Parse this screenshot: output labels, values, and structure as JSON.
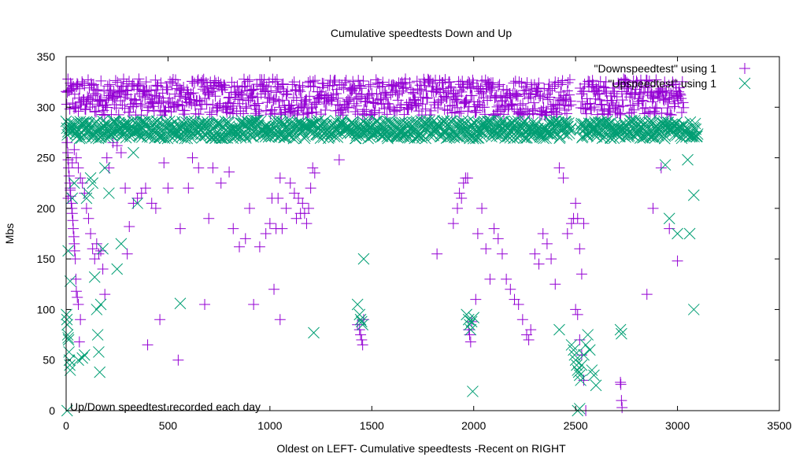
{
  "chart_data": {
    "type": "scatter",
    "title": "Cumulative speedtests Down and Up",
    "xlabel": "Oldest on LEFT- Cumulative speedtests -Recent on RIGHT",
    "ylabel": "Mbs",
    "xlim": [
      0,
      3500
    ],
    "ylim": [
      0,
      350
    ],
    "xticks": [
      0,
      500,
      1000,
      1500,
      2000,
      2500,
      3000,
      3500
    ],
    "yticks": [
      0,
      50,
      100,
      150,
      200,
      250,
      300,
      350
    ],
    "grid": false,
    "legend_position": "top-right",
    "annotation": "Up/Down speedtest recorded each day",
    "series": [
      {
        "name": "\"Downspeedtest\" using 1",
        "marker": "plus",
        "color": "#9400d3",
        "band": {
          "x_range": [
            0,
            3030
          ],
          "y_center": 310,
          "y_spread": 18,
          "count": 3030,
          "gaps": [
            [
              2480,
              2520
            ]
          ]
        },
        "points": [
          [
            5,
            265
          ],
          [
            8,
            255
          ],
          [
            10,
            248
          ],
          [
            12,
            240
          ],
          [
            15,
            232
          ],
          [
            18,
            225
          ],
          [
            20,
            218
          ],
          [
            22,
            212
          ],
          [
            25,
            205
          ],
          [
            28,
            200
          ],
          [
            30,
            195
          ],
          [
            33,
            188
          ],
          [
            35,
            180
          ],
          [
            38,
            172
          ],
          [
            40,
            165
          ],
          [
            42,
            158
          ],
          [
            45,
            150
          ],
          [
            48,
            130
          ],
          [
            50,
            118
          ],
          [
            55,
            112
          ],
          [
            60,
            105
          ],
          [
            65,
            68
          ],
          [
            70,
            90
          ],
          [
            10,
            210
          ],
          [
            20,
            220
          ],
          [
            30,
            245
          ],
          [
            40,
            258
          ],
          [
            50,
            250
          ],
          [
            60,
            240
          ],
          [
            70,
            230
          ],
          [
            80,
            225
          ],
          [
            90,
            215
          ],
          [
            100,
            200
          ],
          [
            110,
            190
          ],
          [
            120,
            175
          ],
          [
            130,
            160
          ],
          [
            140,
            150
          ],
          [
            150,
            165
          ],
          [
            160,
            155
          ],
          [
            170,
            158
          ],
          [
            180,
            140
          ],
          [
            190,
            115
          ],
          [
            200,
            250
          ],
          [
            210,
            240
          ],
          [
            230,
            265
          ],
          [
            250,
            262
          ],
          [
            270,
            255
          ],
          [
            290,
            220
          ],
          [
            300,
            155
          ],
          [
            310,
            182
          ],
          [
            330,
            205
          ],
          [
            350,
            210
          ],
          [
            370,
            215
          ],
          [
            390,
            220
          ],
          [
            400,
            65
          ],
          [
            420,
            205
          ],
          [
            440,
            200
          ],
          [
            460,
            90
          ],
          [
            480,
            245
          ],
          [
            500,
            220
          ],
          [
            550,
            50
          ],
          [
            560,
            180
          ],
          [
            600,
            220
          ],
          [
            620,
            250
          ],
          [
            650,
            240
          ],
          [
            680,
            105
          ],
          [
            700,
            190
          ],
          [
            720,
            240
          ],
          [
            760,
            225
          ],
          [
            800,
            236
          ],
          [
            820,
            180
          ],
          [
            850,
            162
          ],
          [
            880,
            170
          ],
          [
            900,
            200
          ],
          [
            920,
            105
          ],
          [
            950,
            162
          ],
          [
            980,
            175
          ],
          [
            1000,
            185
          ],
          [
            1010,
            210
          ],
          [
            1020,
            120
          ],
          [
            1030,
            180
          ],
          [
            1040,
            210
          ],
          [
            1050,
            230
          ],
          [
            1060,
            180
          ],
          [
            1080,
            200
          ],
          [
            1100,
            225
          ],
          [
            1120,
            215
          ],
          [
            1130,
            190
          ],
          [
            1140,
            210
          ],
          [
            1160,
            205
          ],
          [
            1170,
            195
          ],
          [
            1180,
            185
          ],
          [
            1190,
            200
          ],
          [
            1200,
            220
          ],
          [
            1210,
            240
          ],
          [
            1220,
            235
          ],
          [
            1050,
            90
          ],
          [
            1150,
            195
          ],
          [
            1340,
            248
          ],
          [
            1430,
            85
          ],
          [
            1440,
            80
          ],
          [
            1445,
            75
          ],
          [
            1450,
            70
          ],
          [
            1455,
            65
          ],
          [
            1460,
            90
          ],
          [
            1820,
            155
          ],
          [
            1900,
            185
          ],
          [
            1920,
            200
          ],
          [
            1930,
            215
          ],
          [
            1940,
            210
          ],
          [
            1950,
            225
          ],
          [
            1960,
            230
          ],
          [
            1970,
            230
          ],
          [
            1975,
            80
          ],
          [
            1980,
            75
          ],
          [
            1985,
            68
          ],
          [
            1990,
            88
          ],
          [
            2010,
            110
          ],
          [
            2020,
            175
          ],
          [
            2040,
            200
          ],
          [
            2060,
            160
          ],
          [
            2080,
            130
          ],
          [
            2100,
            180
          ],
          [
            2120,
            170
          ],
          [
            2140,
            155
          ],
          [
            2160,
            130
          ],
          [
            2180,
            120
          ],
          [
            2200,
            110
          ],
          [
            2220,
            105
          ],
          [
            2240,
            90
          ],
          [
            2260,
            75
          ],
          [
            2270,
            70
          ],
          [
            2280,
            80
          ],
          [
            2300,
            155
          ],
          [
            2320,
            145
          ],
          [
            2340,
            175
          ],
          [
            2360,
            165
          ],
          [
            2380,
            150
          ],
          [
            2400,
            125
          ],
          [
            2420,
            240
          ],
          [
            2440,
            230
          ],
          [
            2460,
            175
          ],
          [
            2480,
            185
          ],
          [
            2490,
            190
          ],
          [
            2500,
            205
          ],
          [
            2510,
            190
          ],
          [
            2520,
            160
          ],
          [
            2530,
            135
          ],
          [
            2540,
            185
          ],
          [
            2500,
            100
          ],
          [
            2510,
            95
          ],
          [
            2520,
            70
          ],
          [
            2530,
            55
          ],
          [
            2540,
            30
          ],
          [
            2550,
            0
          ],
          [
            2720,
            28
          ],
          [
            2722,
            26
          ],
          [
            2725,
            10
          ],
          [
            2728,
            3
          ],
          [
            2850,
            115
          ],
          [
            2880,
            200
          ],
          [
            2920,
            240
          ],
          [
            2960,
            180
          ],
          [
            3000,
            148
          ]
        ]
      },
      {
        "name": "\"Upspeedtest\" using 1",
        "marker": "cross",
        "color": "#009e73",
        "band": {
          "x_range": [
            0,
            3100
          ],
          "y_center": 278,
          "y_spread": 9,
          "count": 3100,
          "gaps": [
            [
              2480,
              2520
            ]
          ]
        },
        "points": [
          [
            2,
            95
          ],
          [
            4,
            90
          ],
          [
            6,
            85
          ],
          [
            8,
            75
          ],
          [
            10,
            72
          ],
          [
            12,
            70
          ],
          [
            14,
            58
          ],
          [
            16,
            50
          ],
          [
            18,
            45
          ],
          [
            20,
            40
          ],
          [
            5,
            0
          ],
          [
            10,
            158
          ],
          [
            20,
            128
          ],
          [
            30,
            210
          ],
          [
            40,
            225
          ],
          [
            60,
            50
          ],
          [
            80,
            52
          ],
          [
            90,
            55
          ],
          [
            100,
            210
          ],
          [
            110,
            215
          ],
          [
            120,
            230
          ],
          [
            130,
            225
          ],
          [
            140,
            132
          ],
          [
            150,
            100
          ],
          [
            155,
            75
          ],
          [
            160,
            58
          ],
          [
            165,
            38
          ],
          [
            170,
            105
          ],
          [
            180,
            160
          ],
          [
            190,
            240
          ],
          [
            210,
            215
          ],
          [
            250,
            140
          ],
          [
            270,
            165
          ],
          [
            330,
            255
          ],
          [
            350,
            205
          ],
          [
            560,
            106
          ],
          [
            1215,
            77
          ],
          [
            1430,
            105
          ],
          [
            1440,
            95
          ],
          [
            1445,
            90
          ],
          [
            1450,
            88
          ],
          [
            1455,
            85
          ],
          [
            1460,
            150
          ],
          [
            1965,
            95
          ],
          [
            1975,
            90
          ],
          [
            1980,
            85
          ],
          [
            1985,
            80
          ],
          [
            1990,
            88
          ],
          [
            2000,
            92
          ],
          [
            1995,
            19
          ],
          [
            2420,
            80
          ],
          [
            2480,
            65
          ],
          [
            2490,
            60
          ],
          [
            2495,
            55
          ],
          [
            2500,
            50
          ],
          [
            2505,
            45
          ],
          [
            2510,
            40
          ],
          [
            2515,
            38
          ],
          [
            2520,
            35
          ],
          [
            2525,
            30
          ],
          [
            2530,
            45
          ],
          [
            2540,
            55
          ],
          [
            2550,
            65
          ],
          [
            2560,
            75
          ],
          [
            2570,
            60
          ],
          [
            2580,
            40
          ],
          [
            2590,
            35
          ],
          [
            2600,
            25
          ],
          [
            2510,
            0
          ],
          [
            2520,
            2
          ],
          [
            2720,
            80
          ],
          [
            2725,
            76
          ],
          [
            2940,
            243
          ],
          [
            2960,
            190
          ],
          [
            3000,
            175
          ],
          [
            3050,
            248
          ],
          [
            3060,
            175
          ],
          [
            3080,
            213
          ],
          [
            3080,
            100
          ]
        ]
      }
    ]
  }
}
